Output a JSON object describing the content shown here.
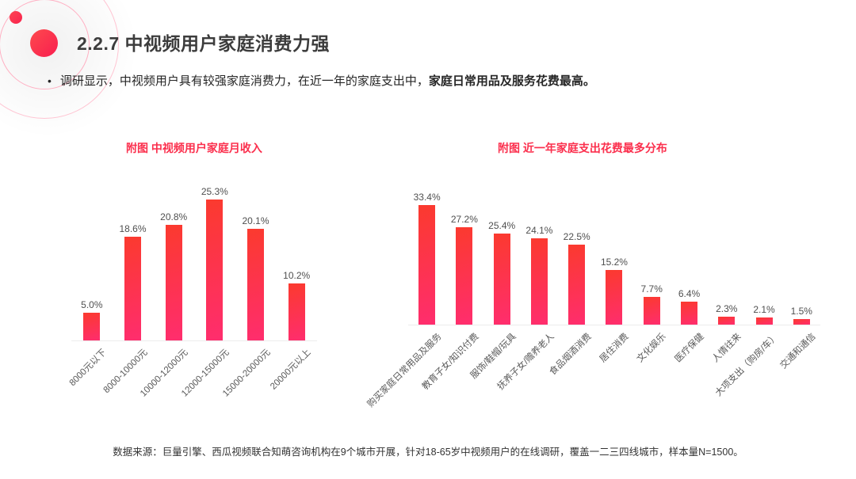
{
  "page": {
    "title": "2.2.7  中视频用户家庭消费力强",
    "bullet": {
      "marker": "•",
      "text_normal": "调研显示，中视频用户具有较强家庭消费力，在近一年的家庭支出中，",
      "text_bold": "家庭日常用品及服务花费最高。"
    },
    "footer": "数据来源：巨量引擎、西瓜视频联合知萌咨询机构在9个城市开展，针对18-65岁中视频用户的在线调研，覆盖一二三四线城市，样本量N=1500。"
  },
  "colors": {
    "accent": "#fb2f4d",
    "bar_gradient_start": "#fb3a2e",
    "bar_gradient_end": "#ff2d6e",
    "axis_line": "#ececec",
    "value_label": "#4f4f4f",
    "tick_label": "#5a5a5a"
  },
  "chart_data": [
    {
      "type": "bar",
      "title": "附图 中视频用户家庭月收入",
      "categories": [
        "8000元以下",
        "8000-10000元",
        "10000-12000元",
        "12000-15000元",
        "15000-20000元",
        "20000元以上"
      ],
      "values": [
        5.0,
        18.6,
        20.8,
        25.3,
        20.1,
        10.2
      ],
      "unit": "%",
      "xlabel": "",
      "ylabel": "",
      "ylim": [
        0,
        33
      ],
      "grid": false,
      "legend": false,
      "data_labels": true,
      "tick_rotation": -45
    },
    {
      "type": "bar",
      "title": "附图 近一年家庭支出花费最多分布",
      "categories": [
        "购买家庭日常用品及服务",
        "教育子女/知识付费",
        "服饰/鞋帽/玩具",
        "抚养子女/赡养老人",
        "食品烟酒消费",
        "居住消费",
        "文化娱乐",
        "医疗保健",
        "人情往来",
        "大项支出（购房/车）",
        "交通和通信"
      ],
      "values": [
        33.4,
        27.2,
        25.4,
        24.1,
        22.5,
        15.2,
        7.7,
        6.4,
        2.3,
        2.1,
        1.5
      ],
      "unit": "%",
      "xlabel": "",
      "ylabel": "",
      "ylim": [
        0,
        47
      ],
      "grid": false,
      "legend": false,
      "data_labels": true,
      "tick_rotation": -45
    }
  ]
}
